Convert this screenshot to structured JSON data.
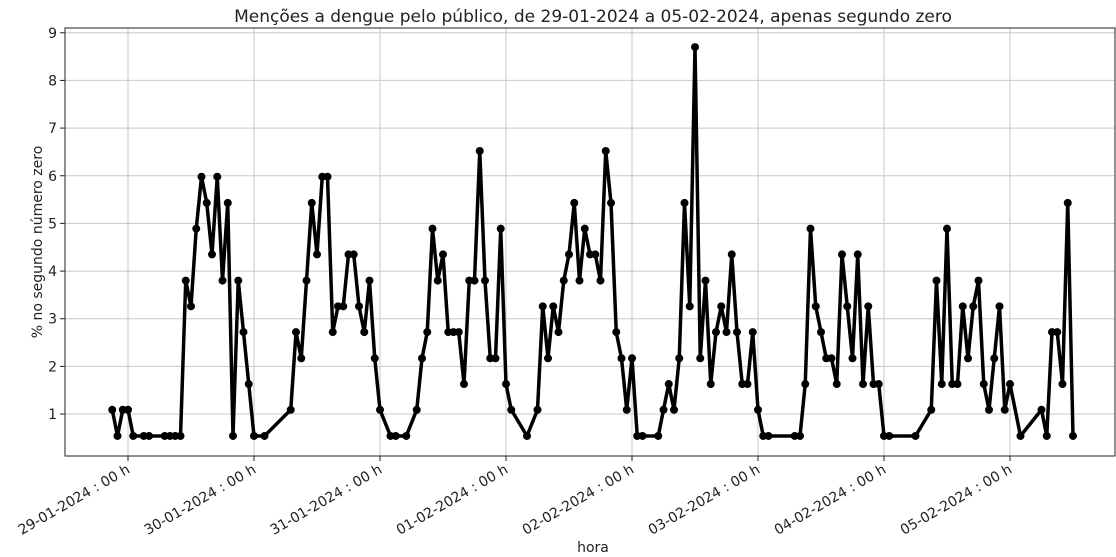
{
  "chart_data": {
    "type": "line",
    "title": "Menções a dengue pelo público, de 29-01-2024 a 05-02-2024, apenas segundo zero",
    "xlabel": "hora",
    "ylabel": "% no segundo número zero",
    "xlim": [
      "2024-01-28T12:00",
      "2024-02-05T20:00"
    ],
    "ylim": [
      0.12,
      9.1
    ],
    "yticks": [
      1,
      2,
      3,
      4,
      5,
      6,
      7,
      8,
      9
    ],
    "xticks": [
      {
        "value": "2024-01-29T00:00",
        "label": "29-01-2024 : 00 h"
      },
      {
        "value": "2024-01-30T00:00",
        "label": "30-01-2024 : 00 h"
      },
      {
        "value": "2024-01-31T00:00",
        "label": "31-01-2024 : 00 h"
      },
      {
        "value": "2024-02-01T00:00",
        "label": "01-02-2024 : 00 h"
      },
      {
        "value": "2024-02-02T00:00",
        "label": "02-02-2024 : 00 h"
      },
      {
        "value": "2024-02-03T00:00",
        "label": "03-02-2024 : 00 h"
      },
      {
        "value": "2024-02-04T00:00",
        "label": "04-02-2024 : 00 h"
      },
      {
        "value": "2024-02-05T00:00",
        "label": "05-02-2024 : 00 h"
      }
    ],
    "grid": true,
    "x": [
      "2024-01-28T21:00",
      "2024-01-28T22:00",
      "2024-01-28T23:00",
      "2024-01-29T00:00",
      "2024-01-29T01:00",
      "2024-01-29T03:00",
      "2024-01-29T04:00",
      "2024-01-29T07:00",
      "2024-01-29T08:00",
      "2024-01-29T09:00",
      "2024-01-29T10:00",
      "2024-01-29T11:00",
      "2024-01-29T12:00",
      "2024-01-29T13:00",
      "2024-01-29T14:00",
      "2024-01-29T15:00",
      "2024-01-29T16:00",
      "2024-01-29T17:00",
      "2024-01-29T18:00",
      "2024-01-29T19:00",
      "2024-01-29T20:00",
      "2024-01-29T21:00",
      "2024-01-29T22:00",
      "2024-01-29T23:00",
      "2024-01-30T00:00",
      "2024-01-30T02:00",
      "2024-01-30T07:00",
      "2024-01-30T08:00",
      "2024-01-30T09:00",
      "2024-01-30T10:00",
      "2024-01-30T11:00",
      "2024-01-30T12:00",
      "2024-01-30T13:00",
      "2024-01-30T14:00",
      "2024-01-30T15:00",
      "2024-01-30T16:00",
      "2024-01-30T17:00",
      "2024-01-30T18:00",
      "2024-01-30T19:00",
      "2024-01-30T20:00",
      "2024-01-30T21:00",
      "2024-01-30T22:00",
      "2024-01-30T23:00",
      "2024-01-31T00:00",
      "2024-01-31T02:00",
      "2024-01-31T03:00",
      "2024-01-31T05:00",
      "2024-01-31T07:00",
      "2024-01-31T08:00",
      "2024-01-31T09:00",
      "2024-01-31T10:00",
      "2024-01-31T11:00",
      "2024-01-31T12:00",
      "2024-01-31T13:00",
      "2024-01-31T14:00",
      "2024-01-31T15:00",
      "2024-01-31T16:00",
      "2024-01-31T17:00",
      "2024-01-31T18:00",
      "2024-01-31T19:00",
      "2024-01-31T20:00",
      "2024-01-31T21:00",
      "2024-01-31T22:00",
      "2024-01-31T23:00",
      "2024-02-01T00:00",
      "2024-02-01T01:00",
      "2024-02-01T04:00",
      "2024-02-01T06:00",
      "2024-02-01T07:00",
      "2024-02-01T08:00",
      "2024-02-01T09:00",
      "2024-02-01T10:00",
      "2024-02-01T11:00",
      "2024-02-01T12:00",
      "2024-02-01T13:00",
      "2024-02-01T14:00",
      "2024-02-01T15:00",
      "2024-02-01T16:00",
      "2024-02-01T17:00",
      "2024-02-01T18:00",
      "2024-02-01T19:00",
      "2024-02-01T20:00",
      "2024-02-01T21:00",
      "2024-02-01T22:00",
      "2024-02-01T23:00",
      "2024-02-02T00:00",
      "2024-02-02T01:00",
      "2024-02-02T02:00",
      "2024-02-02T05:00",
      "2024-02-02T06:00",
      "2024-02-02T07:00",
      "2024-02-02T08:00",
      "2024-02-02T09:00",
      "2024-02-02T10:00",
      "2024-02-02T11:00",
      "2024-02-02T12:00",
      "2024-02-02T13:00",
      "2024-02-02T14:00",
      "2024-02-02T15:00",
      "2024-02-02T16:00",
      "2024-02-02T17:00",
      "2024-02-02T18:00",
      "2024-02-02T19:00",
      "2024-02-02T20:00",
      "2024-02-02T21:00",
      "2024-02-02T22:00",
      "2024-02-02T23:00",
      "2024-02-03T00:00",
      "2024-02-03T01:00",
      "2024-02-03T02:00",
      "2024-02-03T07:00",
      "2024-02-03T08:00",
      "2024-02-03T09:00",
      "2024-02-03T10:00",
      "2024-02-03T11:00",
      "2024-02-03T12:00",
      "2024-02-03T13:00",
      "2024-02-03T14:00",
      "2024-02-03T15:00",
      "2024-02-03T16:00",
      "2024-02-03T17:00",
      "2024-02-03T18:00",
      "2024-02-03T19:00",
      "2024-02-03T20:00",
      "2024-02-03T21:00",
      "2024-02-03T22:00",
      "2024-02-03T23:00",
      "2024-02-04T00:00",
      "2024-02-04T01:00",
      "2024-02-04T06:00",
      "2024-02-04T09:00",
      "2024-02-04T10:00",
      "2024-02-04T11:00",
      "2024-02-04T12:00",
      "2024-02-04T13:00",
      "2024-02-04T14:00",
      "2024-02-04T15:00",
      "2024-02-04T16:00",
      "2024-02-04T17:00",
      "2024-02-04T18:00",
      "2024-02-04T19:00",
      "2024-02-04T20:00",
      "2024-02-04T21:00",
      "2024-02-04T22:00",
      "2024-02-04T23:00",
      "2024-02-05T00:00",
      "2024-02-05T02:00",
      "2024-02-05T06:00",
      "2024-02-05T07:00",
      "2024-02-05T08:00",
      "2024-02-05T09:00",
      "2024-02-05T10:00",
      "2024-02-05T11:00",
      "2024-02-05T12:00"
    ],
    "series": [
      {
        "color": "#000000",
        "values": [
          1.09,
          0.54,
          1.09,
          1.09,
          0.54,
          0.54,
          0.54,
          0.54,
          0.54,
          0.54,
          0.54,
          3.8,
          3.26,
          4.89,
          5.98,
          5.43,
          4.35,
          5.98,
          3.8,
          5.43,
          0.54,
          3.8,
          2.72,
          1.63,
          0.54,
          0.54,
          1.09,
          2.72,
          2.17,
          3.8,
          5.43,
          4.35,
          5.98,
          5.98,
          2.72,
          3.26,
          3.26,
          4.35,
          4.35,
          3.26,
          2.72,
          3.8,
          2.17,
          1.09,
          0.54,
          0.54,
          0.54,
          1.09,
          2.17,
          2.72,
          4.89,
          3.8,
          4.35,
          2.72,
          2.72,
          2.72,
          1.63,
          3.8,
          3.8,
          6.52,
          3.8,
          2.17,
          2.17,
          4.89,
          1.63,
          1.09,
          0.54,
          1.09,
          3.26,
          2.17,
          3.26,
          2.72,
          3.8,
          4.35,
          5.43,
          3.8,
          4.89,
          4.35,
          4.35,
          3.8,
          6.52,
          5.43,
          2.72,
          2.17,
          1.09,
          2.17,
          0.54,
          0.54,
          0.54,
          1.09,
          1.63,
          1.09,
          2.17,
          5.43,
          3.26,
          8.7,
          2.17,
          3.8,
          1.63,
          2.72,
          3.26,
          2.72,
          4.35,
          2.72,
          1.63,
          1.63,
          2.72,
          1.09,
          0.54,
          0.54,
          0.54,
          0.54,
          1.63,
          4.89,
          3.26,
          2.72,
          2.17,
          2.17,
          1.63,
          4.35,
          3.26,
          2.17,
          4.35,
          1.63,
          3.26,
          1.63,
          1.63,
          0.54,
          0.54,
          0.54,
          1.09,
          3.8,
          1.63,
          4.89,
          1.63,
          1.63,
          3.26,
          2.17,
          3.26,
          3.8,
          1.63,
          1.09,
          2.17,
          3.26,
          1.09,
          1.63,
          0.54,
          1.09,
          0.54,
          2.72,
          2.72,
          1.63,
          5.43,
          0.54
        ]
      }
    ]
  }
}
